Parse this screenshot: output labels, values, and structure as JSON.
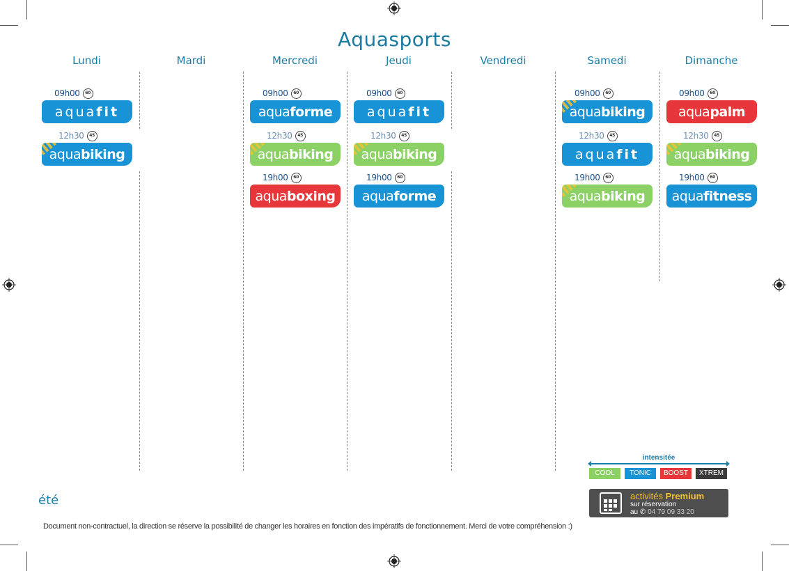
{
  "title": "Aquasports",
  "days": [
    "Lundi",
    "Mardi",
    "Mercredi",
    "Jeudi",
    "Vendredi",
    "Samedi",
    "Dimanche"
  ],
  "sessions": [
    {
      "day": 0,
      "slot": 0,
      "time": "09h00",
      "duration": "60",
      "prefix": "aqua",
      "suffix": "fit",
      "intensity": "TONIC"
    },
    {
      "day": 0,
      "slot": 1,
      "time": "12h30",
      "duration": "45",
      "prefix": "aqua",
      "suffix": "biking",
      "intensity": "TONIC",
      "premium": true
    },
    {
      "day": 2,
      "slot": 0,
      "time": "09h00",
      "duration": "60",
      "prefix": "aqua",
      "suffix": "forme",
      "intensity": "TONIC"
    },
    {
      "day": 2,
      "slot": 1,
      "time": "12h30",
      "duration": "45",
      "prefix": "aqua",
      "suffix": "biking",
      "intensity": "COOL",
      "premium": true
    },
    {
      "day": 2,
      "slot": 2,
      "time": "19h00",
      "duration": "60",
      "prefix": "aqua",
      "suffix": "boxing",
      "intensity": "BOOST"
    },
    {
      "day": 3,
      "slot": 0,
      "time": "09h00",
      "duration": "60",
      "prefix": "aqua",
      "suffix": "fit",
      "intensity": "TONIC"
    },
    {
      "day": 3,
      "slot": 1,
      "time": "12h30",
      "duration": "45",
      "prefix": "aqua",
      "suffix": "biking",
      "intensity": "COOL",
      "premium": true
    },
    {
      "day": 3,
      "slot": 2,
      "time": "19h00",
      "duration": "60",
      "prefix": "aqua",
      "suffix": "forme",
      "intensity": "TONIC"
    },
    {
      "day": 5,
      "slot": 0,
      "time": "09h00",
      "duration": "60",
      "prefix": "aqua",
      "suffix": "biking",
      "intensity": "TONIC",
      "premium": true
    },
    {
      "day": 5,
      "slot": 1,
      "time": "12h30",
      "duration": "45",
      "prefix": "aqua",
      "suffix": "fit",
      "intensity": "TONIC"
    },
    {
      "day": 5,
      "slot": 2,
      "time": "19h00",
      "duration": "60",
      "prefix": "aqua",
      "suffix": "biking",
      "intensity": "COOL",
      "premium": true
    },
    {
      "day": 6,
      "slot": 0,
      "time": "09h00",
      "duration": "60",
      "prefix": "aqua",
      "suffix": "palm",
      "intensity": "BOOST"
    },
    {
      "day": 6,
      "slot": 1,
      "time": "12h30",
      "duration": "45",
      "prefix": "aqua",
      "suffix": "biking",
      "intensity": "COOL",
      "premium": true
    },
    {
      "day": 6,
      "slot": 2,
      "time": "19h00",
      "duration": "60",
      "prefix": "aqua",
      "suffix": "fitness",
      "intensity": "TONIC"
    }
  ],
  "legend": {
    "title": "intensitée",
    "levels": [
      {
        "label": "COOL",
        "color": "#8bd165"
      },
      {
        "label": "TONIC",
        "color": "#1793d6"
      },
      {
        "label": "BOOST",
        "color": "#e8373a"
      },
      {
        "label": "XTREM",
        "color": "#3a3a3a"
      }
    ]
  },
  "premium": {
    "line1_a": "activités",
    "line1_b": "Premium",
    "line2": "sur réservation",
    "line3_a": "au",
    "phone": "04 79 09 33 20"
  },
  "season": "été",
  "disclaimer": "Document non-contractuel, la direction se réserve la possibilité de changer les horaires en fonction des impératifs de fonctionnement. Merci de votre compréhension :)"
}
